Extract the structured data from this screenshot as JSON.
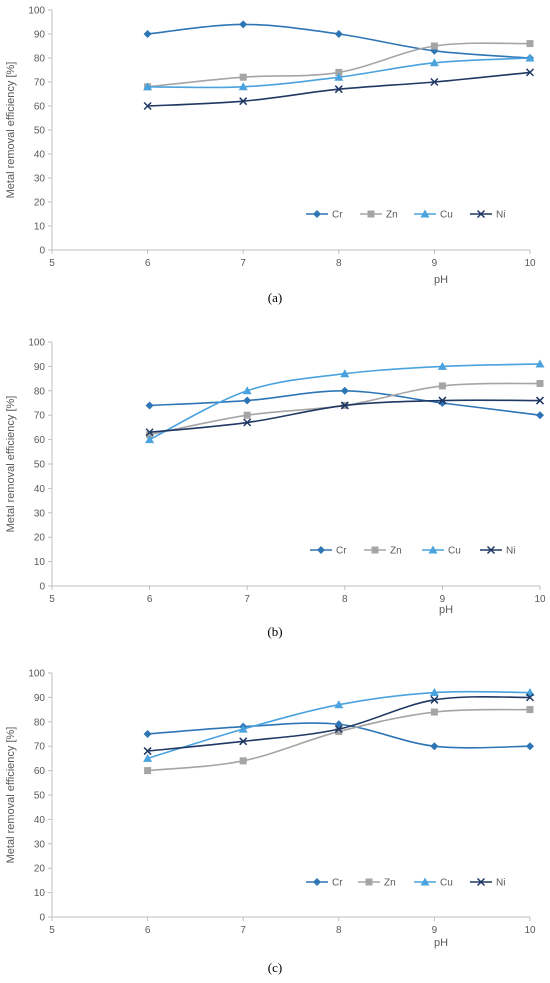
{
  "chart_data": [
    {
      "type": "line",
      "panel_label": "(a)",
      "xlabel": "pH",
      "ylabel": "Metal removal efficiency [%]",
      "xlim": [
        5,
        10
      ],
      "ylim": [
        0,
        100
      ],
      "x_ticks": [
        5,
        6,
        7,
        8,
        9,
        10
      ],
      "y_ticks": [
        0,
        10,
        20,
        30,
        40,
        50,
        60,
        70,
        80,
        90,
        100
      ],
      "grid": false,
      "legend": "bottom-right",
      "x": [
        6,
        7,
        8,
        9,
        10
      ],
      "series": [
        {
          "name": "Cr",
          "marker": "diamond",
          "color": "#2E75B6",
          "values": [
            90,
            94,
            90,
            83,
            80
          ]
        },
        {
          "name": "Zn",
          "marker": "square",
          "color": "#A5A5A5",
          "values": [
            68,
            72,
            74,
            85,
            86
          ]
        },
        {
          "name": "Cu",
          "marker": "triangle",
          "color": "#4AA3DF",
          "values": [
            68,
            68,
            72,
            78,
            80
          ]
        },
        {
          "name": "Ni",
          "marker": "x",
          "color": "#1F3864",
          "values": [
            60,
            62,
            67,
            70,
            74
          ]
        }
      ]
    },
    {
      "type": "line",
      "panel_label": "(b)",
      "xlabel": "pH",
      "ylabel": "Metal removal efficiency [%]",
      "xlim": [
        5,
        10
      ],
      "ylim": [
        0,
        100
      ],
      "x_ticks": [
        5,
        6,
        7,
        8,
        9,
        10
      ],
      "y_ticks": [
        0,
        10,
        20,
        30,
        40,
        50,
        60,
        70,
        80,
        90,
        100
      ],
      "grid": false,
      "legend": "bottom-right",
      "x": [
        6,
        7,
        8,
        9,
        10
      ],
      "series": [
        {
          "name": "Cr",
          "marker": "diamond",
          "color": "#2E75B6",
          "values": [
            74,
            76,
            80,
            75,
            70
          ]
        },
        {
          "name": "Zn",
          "marker": "square",
          "color": "#A5A5A5",
          "values": [
            62,
            70,
            74,
            82,
            83
          ]
        },
        {
          "name": "Cu",
          "marker": "triangle",
          "color": "#4AA3DF",
          "values": [
            60,
            80,
            87,
            90,
            91
          ]
        },
        {
          "name": "Ni",
          "marker": "x",
          "color": "#1F3864",
          "values": [
            63,
            67,
            74,
            76,
            76
          ]
        }
      ]
    },
    {
      "type": "line",
      "panel_label": "(c)",
      "xlabel": "pH",
      "ylabel": "Metal removal efficiency [%]",
      "xlim": [
        5,
        10
      ],
      "ylim": [
        0,
        100
      ],
      "x_ticks": [
        5,
        6,
        7,
        8,
        9,
        10
      ],
      "y_ticks": [
        0,
        10,
        20,
        30,
        40,
        50,
        60,
        70,
        80,
        90,
        100
      ],
      "grid": false,
      "legend": "bottom-right",
      "x": [
        6,
        7,
        8,
        9,
        10
      ],
      "series": [
        {
          "name": "Cr",
          "marker": "diamond",
          "color": "#2E75B6",
          "values": [
            75,
            78,
            79,
            70,
            70
          ]
        },
        {
          "name": "Zn",
          "marker": "square",
          "color": "#A5A5A5",
          "values": [
            60,
            64,
            76,
            84,
            85
          ]
        },
        {
          "name": "Cu",
          "marker": "triangle",
          "color": "#4AA3DF",
          "values": [
            65,
            77,
            87,
            92,
            92
          ]
        },
        {
          "name": "Ni",
          "marker": "x",
          "color": "#1F3864",
          "values": [
            68,
            72,
            77,
            89,
            90
          ]
        }
      ]
    }
  ]
}
